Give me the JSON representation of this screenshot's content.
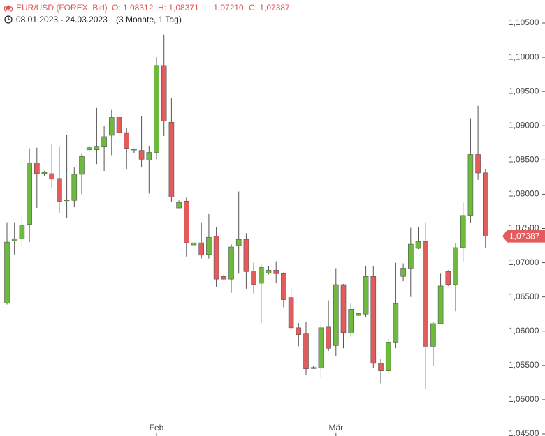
{
  "header": {
    "symbol": "EUR/USD (FOREX, Bid)",
    "open": "O: 1,08312",
    "high": "H: 1,08371",
    "low": "L: 1,07210",
    "close": "C: 1,07387",
    "range": "08.01.2023 - 24.03.2023",
    "period": "(3 Monate, 1 Tag)"
  },
  "chart_data": {
    "type": "candlestick",
    "categories": [
      null,
      null,
      null,
      null,
      null,
      null,
      null,
      null,
      null,
      null,
      null,
      null,
      null,
      null,
      null,
      null,
      null,
      null,
      null,
      null,
      "Feb",
      null,
      null,
      null,
      null,
      null,
      null,
      null,
      null,
      null,
      null,
      null,
      null,
      null,
      null,
      null,
      null,
      null,
      null,
      null,
      null,
      null,
      null,
      null,
      "Mär",
      null,
      null,
      null,
      null,
      null,
      null,
      null,
      null,
      null,
      null,
      null,
      null,
      null,
      null,
      null,
      null,
      null,
      null,
      null,
      null
    ],
    "open": [
      1.0641,
      1.0732,
      1.0735,
      1.0756,
      1.0846,
      1.083,
      1.083,
      1.0823,
      1.0791,
      1.0791,
      1.0829,
      1.0865,
      1.0865,
      1.0869,
      1.0886,
      1.0912,
      1.089,
      1.0866,
      1.0864,
      1.085,
      1.0861,
      1.0988,
      1.0905,
      1.078,
      1.079,
      1.0726,
      1.0729,
      1.0712,
      1.0739,
      1.068,
      1.0676,
      1.0725,
      1.0734,
      1.0688,
      1.067,
      1.0685,
      1.0689,
      1.0684,
      1.0649,
      1.0605,
      1.0596,
      1.0546,
      1.0546,
      1.0606,
      1.0579,
      1.0668,
      1.0597,
      1.0623,
      1.0625,
      1.068,
      1.0553,
      1.0542,
      1.0584,
      1.068,
      1.0692,
      1.0721,
      1.0731,
      1.0578,
      1.0611,
      1.0687,
      1.0668,
      1.0722,
      1.0769,
      1.0858,
      1.08312
    ],
    "high": [
      1.0759,
      1.0759,
      1.077,
      1.0867,
      1.0868,
      1.0834,
      1.0874,
      1.0869,
      1.0887,
      1.0839,
      1.0859,
      1.087,
      1.0926,
      1.09,
      1.0924,
      1.0928,
      1.0897,
      1.0867,
      1.0914,
      1.087,
      1.1,
      1.1033,
      1.094,
      1.0791,
      1.0795,
      1.0739,
      1.0759,
      1.0771,
      1.0752,
      1.0683,
      1.0727,
      1.0804,
      1.0743,
      1.07,
      1.0697,
      1.0695,
      1.0702,
      1.0686,
      1.0664,
      1.0612,
      1.0613,
      1.0549,
      1.0613,
      1.0645,
      1.0692,
      1.0669,
      1.0641,
      1.0627,
      1.0695,
      1.0695,
      1.0559,
      1.0589,
      1.07,
      1.0699,
      1.0751,
      1.0752,
      1.0759,
      1.0613,
      1.0684,
      1.0689,
      1.0729,
      1.0788,
      1.0911,
      1.0929,
      1.08371
    ],
    "low": [
      1.0639,
      1.0712,
      1.0725,
      1.073,
      1.078,
      1.0827,
      1.0809,
      1.0773,
      1.0765,
      1.0781,
      1.08,
      1.0862,
      1.0844,
      1.0834,
      1.0857,
      1.0854,
      1.0837,
      1.086,
      1.0839,
      1.0801,
      1.0851,
      1.0885,
      1.0789,
      1.078,
      1.0709,
      1.0667,
      1.0706,
      1.0706,
      1.0665,
      1.0674,
      1.0656,
      1.0684,
      1.0662,
      1.0655,
      1.0612,
      1.0683,
      1.067,
      1.0635,
      1.0601,
      1.0578,
      1.0536,
      1.0545,
      1.0532,
      1.0571,
      1.0564,
      1.0575,
      1.0592,
      1.0622,
      1.062,
      1.0546,
      1.0524,
      1.0538,
      1.0575,
      1.0673,
      1.065,
      1.072,
      1.0516,
      1.055,
      1.061,
      1.0666,
      1.0629,
      1.0701,
      1.0758,
      1.0821,
      1.0721
    ],
    "close": [
      1.073,
      1.0735,
      1.0754,
      1.0846,
      1.083,
      1.0832,
      1.0822,
      1.0789,
      1.0792,
      1.0829,
      1.0855,
      1.0868,
      1.0869,
      1.0884,
      1.0912,
      1.089,
      1.0867,
      1.0865,
      1.0851,
      1.0861,
      1.0988,
      1.0907,
      1.0796,
      1.0788,
      1.0729,
      1.0729,
      1.0711,
      1.0737,
      1.0676,
      1.0676,
      1.0723,
      1.0734,
      1.0687,
      1.0668,
      1.0693,
      1.0689,
      1.0684,
      1.0646,
      1.0605,
      1.0595,
      1.0545,
      1.0547,
      1.0605,
      1.0575,
      1.0668,
      1.0598,
      1.0632,
      1.0626,
      1.068,
      1.0553,
      1.0542,
      1.0584,
      1.064,
      1.0692,
      1.0727,
      1.0731,
      1.0578,
      1.0611,
      1.0666,
      1.0668,
      1.0722,
      1.0769,
      1.0858,
      1.0831,
      1.07387
    ],
    "up_color": "#6cbb3c",
    "down_color": "#e35b5b",
    "last_price": {
      "value": 1.07387,
      "label": "1,07387"
    },
    "ylim": [
      1.045,
      1.105
    ],
    "yticks": [
      {
        "value": 1.045,
        "label": "1,04500"
      },
      {
        "value": 1.05,
        "label": "1,05000"
      },
      {
        "value": 1.055,
        "label": "1,05500"
      },
      {
        "value": 1.06,
        "label": "1,06000"
      },
      {
        "value": 1.065,
        "label": "1,06500"
      },
      {
        "value": 1.07,
        "label": "1,07000"
      },
      {
        "value": 1.075,
        "label": "1,07500"
      },
      {
        "value": 1.08,
        "label": "1,08000"
      },
      {
        "value": 1.085,
        "label": "1,08500"
      },
      {
        "value": 1.09,
        "label": "1,09000"
      },
      {
        "value": 1.095,
        "label": "1,09500"
      },
      {
        "value": 1.1,
        "label": "1,10000"
      },
      {
        "value": 1.105,
        "label": "1,10500"
      }
    ],
    "grid": false
  }
}
